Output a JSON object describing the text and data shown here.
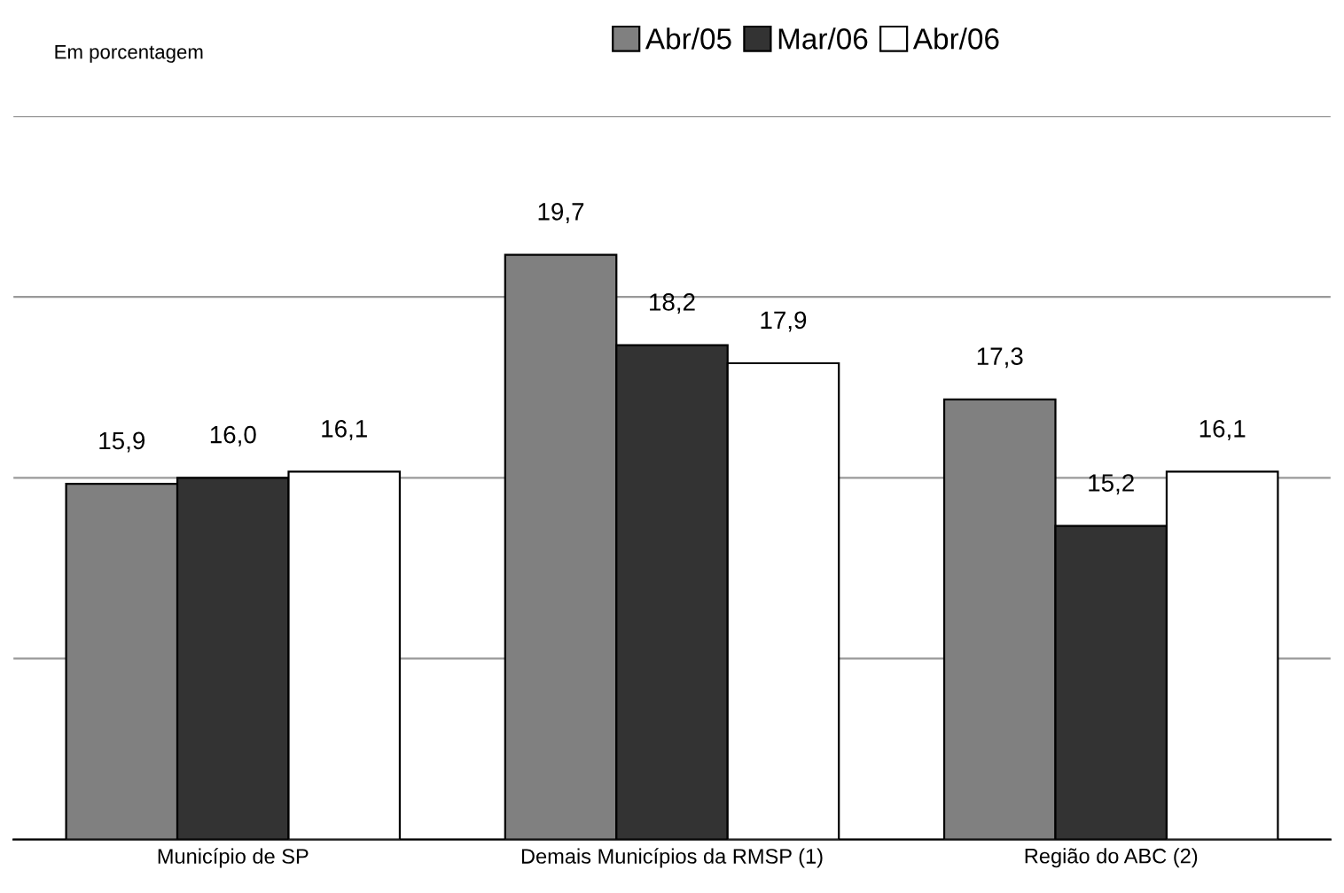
{
  "chart_data": {
    "type": "bar",
    "ylabel": "Em porcentagem",
    "categories": [
      "Município de SP",
      "Demais Municípios da RMSP (1)",
      "Região do ABC (2)"
    ],
    "series": [
      {
        "name": "Abr/05",
        "color": "#808080",
        "values": [
          15.9,
          19.7,
          17.3
        ],
        "value_labels": [
          "15,9",
          "19,7",
          "17,3"
        ]
      },
      {
        "name": "Mar/06",
        "color": "#333333",
        "values": [
          16.0,
          18.2,
          15.2
        ],
        "value_labels": [
          "16,0",
          "18,2",
          "15,2"
        ]
      },
      {
        "name": "Abr/06",
        "color": "#ffffff",
        "values": [
          16.1,
          17.9,
          16.1
        ],
        "value_labels": [
          "16,1",
          "17,9",
          "16,1"
        ]
      }
    ],
    "ylim": [
      10,
      22
    ],
    "yticks": [
      {
        "value": 10,
        "label": null
      },
      {
        "value": 13,
        "label": null
      },
      {
        "value": 16,
        "label": null
      },
      {
        "value": 19,
        "label": null
      },
      {
        "value": 22,
        "label": null
      }
    ],
    "grid": "y",
    "legend": "top",
    "tick_labels": "x"
  }
}
